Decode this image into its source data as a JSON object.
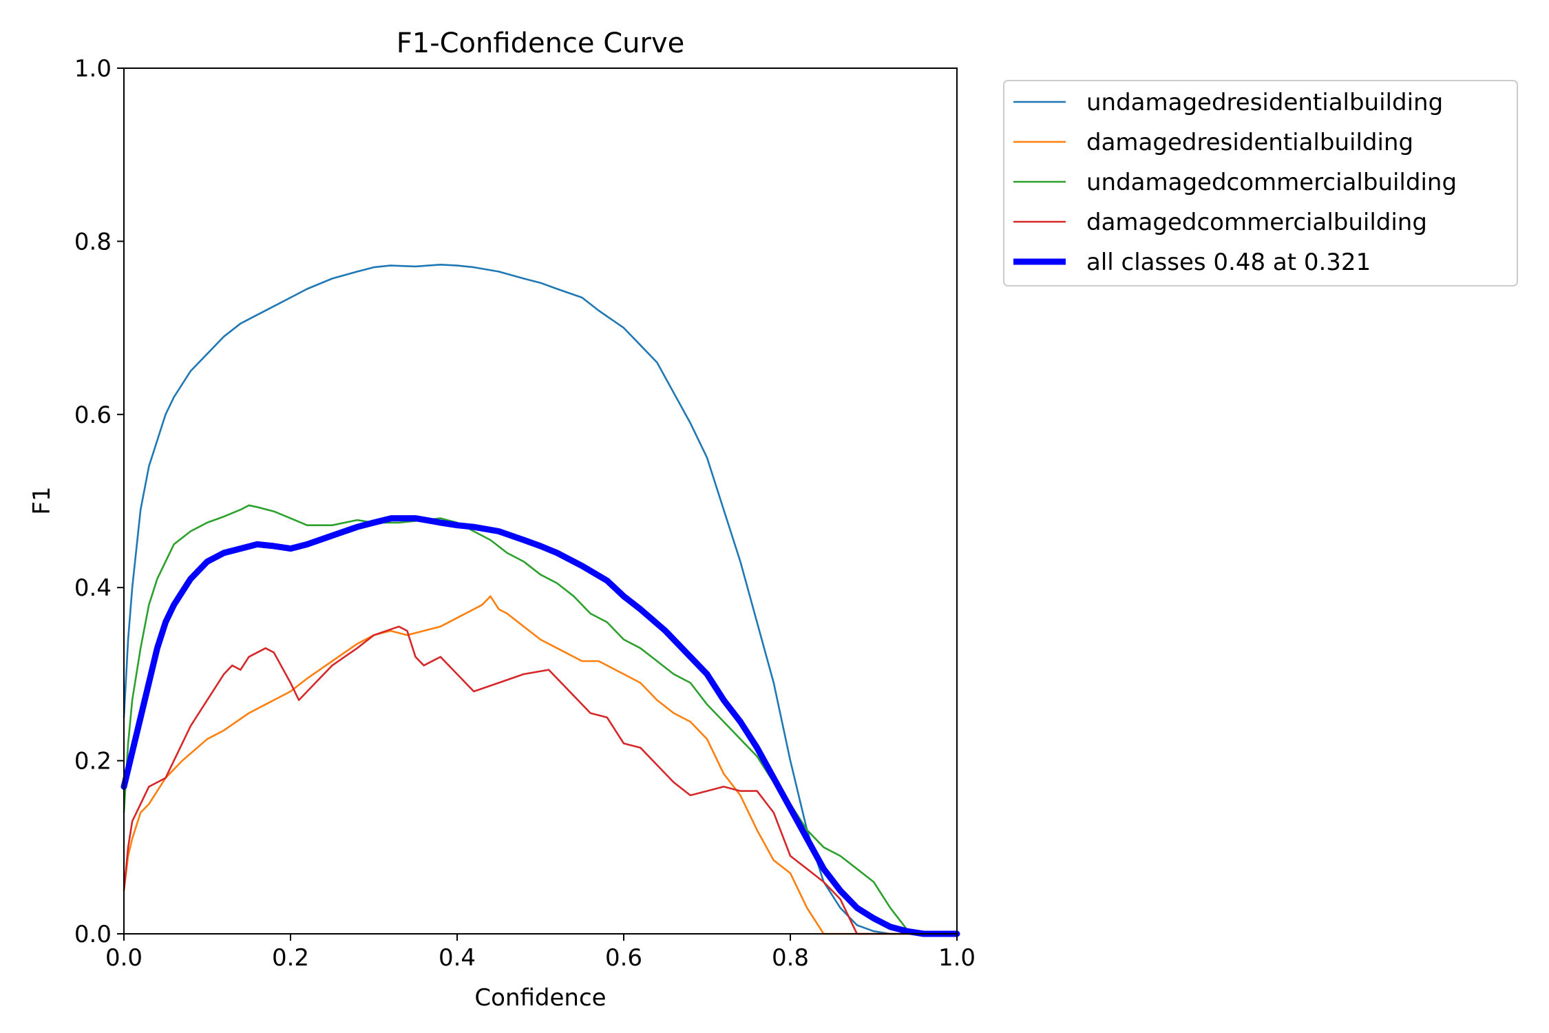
{
  "chart_data": {
    "type": "line",
    "title": "F1-Confidence Curve",
    "xlabel": "Confidence",
    "ylabel": "F1",
    "xlim": [
      0,
      1
    ],
    "ylim": [
      0,
      1
    ],
    "grid": false,
    "legend_placement": "outside-top-right",
    "x_ticks": [
      "0.0",
      "0.2",
      "0.4",
      "0.6",
      "0.8",
      "1.0"
    ],
    "y_ticks": [
      "0.0",
      "0.2",
      "0.4",
      "0.6",
      "0.8",
      "1.0"
    ],
    "series": [
      {
        "name": "undamagedresidentialbuilding",
        "color": "#1f77b4",
        "x": [
          0.0,
          0.005,
          0.01,
          0.02,
          0.03,
          0.04,
          0.05,
          0.06,
          0.08,
          0.1,
          0.12,
          0.14,
          0.16,
          0.18,
          0.2,
          0.22,
          0.25,
          0.28,
          0.3,
          0.32,
          0.35,
          0.38,
          0.4,
          0.42,
          0.45,
          0.48,
          0.5,
          0.52,
          0.55,
          0.57,
          0.6,
          0.62,
          0.64,
          0.66,
          0.68,
          0.7,
          0.72,
          0.74,
          0.76,
          0.78,
          0.8,
          0.82,
          0.84,
          0.86,
          0.88,
          0.9,
          0.92,
          0.94,
          0.96,
          1.0
        ],
        "values": [
          0.25,
          0.34,
          0.4,
          0.49,
          0.54,
          0.57,
          0.6,
          0.62,
          0.65,
          0.67,
          0.69,
          0.705,
          0.715,
          0.725,
          0.735,
          0.745,
          0.757,
          0.765,
          0.77,
          0.772,
          0.771,
          0.773,
          0.772,
          0.77,
          0.765,
          0.757,
          0.752,
          0.745,
          0.735,
          0.72,
          0.7,
          0.68,
          0.66,
          0.625,
          0.59,
          0.55,
          0.49,
          0.43,
          0.36,
          0.29,
          0.2,
          0.12,
          0.06,
          0.03,
          0.01,
          0.003,
          0.0,
          0.0,
          0.0,
          0.0
        ]
      },
      {
        "name": "damagedresidentialbuilding",
        "color": "#ff7f0e",
        "x": [
          0.0,
          0.005,
          0.01,
          0.02,
          0.03,
          0.05,
          0.07,
          0.1,
          0.12,
          0.15,
          0.18,
          0.2,
          0.22,
          0.25,
          0.28,
          0.3,
          0.32,
          0.34,
          0.36,
          0.38,
          0.4,
          0.42,
          0.43,
          0.44,
          0.45,
          0.46,
          0.48,
          0.5,
          0.52,
          0.55,
          0.57,
          0.6,
          0.62,
          0.64,
          0.66,
          0.68,
          0.7,
          0.72,
          0.74,
          0.76,
          0.78,
          0.8,
          0.82,
          0.84,
          0.86,
          0.88,
          1.0
        ],
        "values": [
          0.05,
          0.09,
          0.11,
          0.14,
          0.15,
          0.18,
          0.2,
          0.225,
          0.235,
          0.255,
          0.27,
          0.28,
          0.295,
          0.315,
          0.335,
          0.345,
          0.35,
          0.345,
          0.35,
          0.355,
          0.365,
          0.375,
          0.38,
          0.39,
          0.375,
          0.37,
          0.355,
          0.34,
          0.33,
          0.315,
          0.315,
          0.3,
          0.29,
          0.27,
          0.255,
          0.245,
          0.225,
          0.185,
          0.16,
          0.12,
          0.085,
          0.07,
          0.03,
          0.0,
          0.0,
          0.0,
          0.0
        ]
      },
      {
        "name": "undamagedcommercialbuilding",
        "color": "#2ca02c",
        "x": [
          0.0,
          0.005,
          0.01,
          0.02,
          0.03,
          0.04,
          0.05,
          0.06,
          0.08,
          0.1,
          0.12,
          0.14,
          0.15,
          0.16,
          0.18,
          0.2,
          0.22,
          0.25,
          0.28,
          0.3,
          0.33,
          0.36,
          0.38,
          0.4,
          0.42,
          0.44,
          0.46,
          0.48,
          0.5,
          0.52,
          0.54,
          0.56,
          0.58,
          0.6,
          0.62,
          0.64,
          0.66,
          0.68,
          0.7,
          0.72,
          0.74,
          0.76,
          0.78,
          0.8,
          0.82,
          0.84,
          0.86,
          0.88,
          0.9,
          0.92,
          0.94,
          0.96,
          1.0
        ],
        "values": [
          0.14,
          0.22,
          0.27,
          0.33,
          0.38,
          0.41,
          0.43,
          0.45,
          0.465,
          0.475,
          0.482,
          0.49,
          0.495,
          0.493,
          0.488,
          0.48,
          0.472,
          0.472,
          0.478,
          0.475,
          0.475,
          0.478,
          0.48,
          0.475,
          0.465,
          0.455,
          0.44,
          0.43,
          0.415,
          0.405,
          0.39,
          0.37,
          0.36,
          0.34,
          0.33,
          0.315,
          0.3,
          0.29,
          0.265,
          0.245,
          0.225,
          0.205,
          0.175,
          0.15,
          0.12,
          0.1,
          0.09,
          0.075,
          0.06,
          0.03,
          0.005,
          0.0,
          0.0
        ]
      },
      {
        "name": "damagedcommercialbuilding",
        "color": "#d62728",
        "x": [
          0.0,
          0.005,
          0.01,
          0.02,
          0.03,
          0.04,
          0.05,
          0.06,
          0.08,
          0.1,
          0.12,
          0.13,
          0.14,
          0.15,
          0.17,
          0.18,
          0.2,
          0.21,
          0.22,
          0.25,
          0.28,
          0.3,
          0.33,
          0.34,
          0.35,
          0.36,
          0.38,
          0.4,
          0.42,
          0.45,
          0.48,
          0.51,
          0.54,
          0.56,
          0.58,
          0.6,
          0.62,
          0.64,
          0.66,
          0.68,
          0.7,
          0.72,
          0.74,
          0.76,
          0.78,
          0.8,
          0.82,
          0.84,
          0.86,
          0.88,
          1.0
        ],
        "values": [
          0.05,
          0.1,
          0.13,
          0.15,
          0.17,
          0.175,
          0.18,
          0.2,
          0.24,
          0.27,
          0.3,
          0.31,
          0.305,
          0.32,
          0.33,
          0.325,
          0.29,
          0.27,
          0.28,
          0.31,
          0.33,
          0.345,
          0.355,
          0.35,
          0.32,
          0.31,
          0.32,
          0.3,
          0.28,
          0.29,
          0.3,
          0.305,
          0.275,
          0.255,
          0.25,
          0.22,
          0.215,
          0.195,
          0.175,
          0.16,
          0.165,
          0.17,
          0.165,
          0.165,
          0.14,
          0.09,
          0.075,
          0.06,
          0.04,
          0.0,
          0.0
        ]
      },
      {
        "name": "all classes 0.48 at 0.321",
        "color": "#0000ff",
        "x": [
          0.0,
          0.01,
          0.02,
          0.03,
          0.04,
          0.05,
          0.06,
          0.08,
          0.1,
          0.12,
          0.14,
          0.16,
          0.18,
          0.2,
          0.22,
          0.25,
          0.28,
          0.3,
          0.321,
          0.35,
          0.38,
          0.4,
          0.42,
          0.45,
          0.48,
          0.5,
          0.52,
          0.55,
          0.58,
          0.6,
          0.62,
          0.65,
          0.68,
          0.7,
          0.72,
          0.74,
          0.76,
          0.78,
          0.8,
          0.82,
          0.84,
          0.86,
          0.88,
          0.9,
          0.92,
          0.94,
          0.96,
          1.0
        ],
        "values": [
          0.17,
          0.21,
          0.25,
          0.29,
          0.33,
          0.36,
          0.38,
          0.41,
          0.43,
          0.44,
          0.445,
          0.45,
          0.448,
          0.445,
          0.45,
          0.46,
          0.47,
          0.475,
          0.48,
          0.48,
          0.475,
          0.472,
          0.47,
          0.465,
          0.455,
          0.448,
          0.44,
          0.425,
          0.408,
          0.39,
          0.375,
          0.35,
          0.32,
          0.3,
          0.27,
          0.245,
          0.215,
          0.18,
          0.145,
          0.11,
          0.075,
          0.05,
          0.03,
          0.018,
          0.008,
          0.003,
          0.0,
          0.0
        ]
      }
    ]
  }
}
